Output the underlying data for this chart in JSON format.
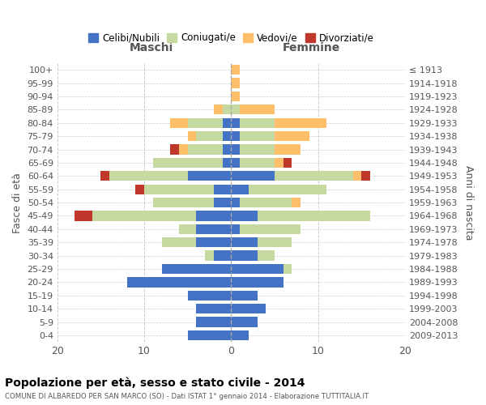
{
  "age_groups": [
    "0-4",
    "5-9",
    "10-14",
    "15-19",
    "20-24",
    "25-29",
    "30-34",
    "35-39",
    "40-44",
    "45-49",
    "50-54",
    "55-59",
    "60-64",
    "65-69",
    "70-74",
    "75-79",
    "80-84",
    "85-89",
    "90-94",
    "95-99",
    "100+"
  ],
  "birth_years": [
    "2009-2013",
    "2004-2008",
    "1999-2003",
    "1994-1998",
    "1989-1993",
    "1984-1988",
    "1979-1983",
    "1974-1978",
    "1969-1973",
    "1964-1968",
    "1959-1963",
    "1954-1958",
    "1949-1953",
    "1944-1948",
    "1939-1943",
    "1934-1938",
    "1929-1933",
    "1924-1928",
    "1919-1923",
    "1914-1918",
    "≤ 1913"
  ],
  "maschi": {
    "celibi": [
      5,
      4,
      4,
      5,
      12,
      8,
      2,
      4,
      4,
      4,
      2,
      2,
      5,
      1,
      1,
      1,
      1,
      0,
      0,
      0,
      0
    ],
    "coniugati": [
      0,
      0,
      0,
      0,
      0,
      0,
      1,
      4,
      2,
      12,
      7,
      8,
      9,
      8,
      4,
      3,
      4,
      1,
      0,
      0,
      0
    ],
    "vedovi": [
      0,
      0,
      0,
      0,
      0,
      0,
      0,
      0,
      0,
      0,
      0,
      0,
      0,
      0,
      1,
      1,
      2,
      1,
      0,
      0,
      0
    ],
    "divorziati": [
      0,
      0,
      0,
      0,
      0,
      0,
      0,
      0,
      0,
      2,
      0,
      1,
      1,
      0,
      1,
      0,
      0,
      0,
      0,
      0,
      0
    ]
  },
  "femmine": {
    "nubili": [
      2,
      3,
      4,
      3,
      6,
      6,
      3,
      3,
      1,
      3,
      1,
      2,
      5,
      1,
      1,
      1,
      1,
      0,
      0,
      0,
      0
    ],
    "coniugate": [
      0,
      0,
      0,
      0,
      0,
      1,
      2,
      4,
      7,
      13,
      6,
      9,
      9,
      4,
      4,
      4,
      4,
      1,
      0,
      0,
      0
    ],
    "vedove": [
      0,
      0,
      0,
      0,
      0,
      0,
      0,
      0,
      0,
      0,
      1,
      0,
      1,
      1,
      3,
      4,
      6,
      4,
      1,
      1,
      1
    ],
    "divorziate": [
      0,
      0,
      0,
      0,
      0,
      0,
      0,
      0,
      0,
      0,
      0,
      0,
      1,
      1,
      0,
      0,
      0,
      0,
      0,
      0,
      0
    ]
  },
  "colors": {
    "celibi_nubili": "#4472C4",
    "coniugati": "#C6D9A0",
    "vedovi": "#FFBE6A",
    "divorziati": "#C0382B"
  },
  "xlim": [
    -20,
    20
  ],
  "xticks": [
    -20,
    -10,
    0,
    10,
    20
  ],
  "xticklabels": [
    "20",
    "10",
    "0",
    "10",
    "20"
  ],
  "title": "Popolazione per età, sesso e stato civile - 2014",
  "subtitle": "COMUNE DI ALBAREDO PER SAN MARCO (SO) - Dati ISTAT 1° gennaio 2014 - Elaborazione TUTTITALIA.IT",
  "ylabel_left": "Fasce di età",
  "ylabel_right": "Anni di nascita",
  "label_maschi": "Maschi",
  "label_femmine": "Femmine",
  "legend_labels": [
    "Celibi/Nubili",
    "Coniugati/e",
    "Vedovi/e",
    "Divorziati/e"
  ],
  "bg_color": "#ffffff",
  "grid_color": "#cccccc"
}
